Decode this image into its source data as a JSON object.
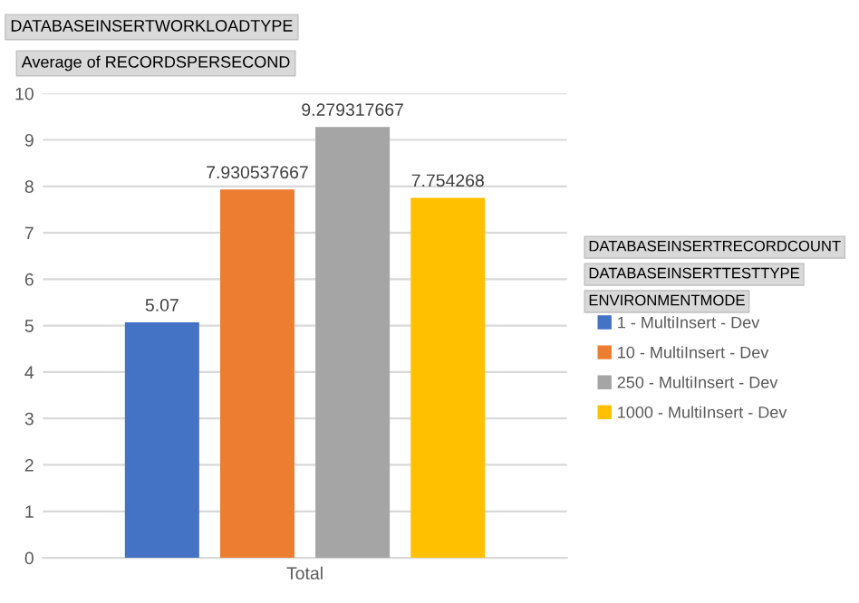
{
  "chart_data": {
    "type": "bar",
    "ylabel": "Average of RECORDSPERSECOND",
    "annotations": [
      "DATABASEINSERTWORKLOADTYPE"
    ],
    "legend_title": "DATABASEINSERTRECORDCOUNT\nDATABASEINSERTTESTTYPE\nENVIRONMENTMODE",
    "categories": [
      "Total"
    ],
    "series": [
      {
        "name": "1 - MultiInsert - Dev",
        "color": "#4472c4",
        "values": [
          5.07
        ]
      },
      {
        "name": "10 - MultiInsert - Dev",
        "color": "#ed7d31",
        "values": [
          7.930537667
        ]
      },
      {
        "name": "250 - MultiInsert - Dev",
        "color": "#a5a5a5",
        "values": [
          9.279317667
        ]
      },
      {
        "name": "1000 - MultiInsert - Dev",
        "color": "#ffc000",
        "values": [
          7.754268
        ]
      }
    ],
    "ylim": [
      0,
      10
    ],
    "yticks": [
      0,
      1,
      2,
      3,
      4,
      5,
      6,
      7,
      8,
      9,
      10
    ],
    "grid": "y",
    "legend": "right",
    "data_labels": true
  }
}
